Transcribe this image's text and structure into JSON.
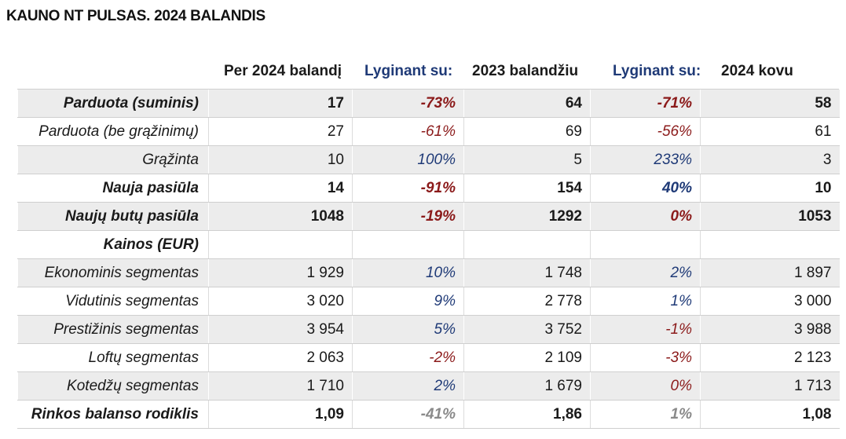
{
  "title": "KAUNO NT PULSAS. 2024 BALANDIS",
  "headers": [
    "Per 2024 balandį",
    "Lyginant su:",
    "2023 balandžiu",
    "Lyginant su:",
    "2024 kovu"
  ],
  "colors": {
    "red": "#8b1a1a",
    "blue": "#1f3a77",
    "gray": "#8a8a8a",
    "shade": "#ececec"
  },
  "rows": [
    {
      "label": "Parduota (suminis)",
      "bold": true,
      "shade": true,
      "cur": "17",
      "pct1": "-73%",
      "pct1_color": "red",
      "y2023": "64",
      "pct2": "-71%",
      "pct2_color": "red",
      "mar": "58"
    },
    {
      "label": "Parduota (be grąžinimų)",
      "bold": false,
      "shade": false,
      "cur": "27",
      "pct1": "-61%",
      "pct1_color": "red",
      "y2023": "69",
      "pct2": "-56%",
      "pct2_color": "red",
      "mar": "61"
    },
    {
      "label": "Grąžinta",
      "bold": false,
      "shade": true,
      "cur": "10",
      "pct1": "100%",
      "pct1_color": "blue",
      "y2023": "5",
      "pct2": "233%",
      "pct2_color": "blue",
      "mar": "3"
    },
    {
      "label": "Nauja pasiūla",
      "bold": true,
      "shade": false,
      "cur": "14",
      "pct1": "-91%",
      "pct1_color": "red",
      "y2023": "154",
      "pct2": "40%",
      "pct2_color": "blue",
      "mar": "10"
    },
    {
      "label": "Naujų butų pasiūla",
      "bold": true,
      "shade": true,
      "cur": "1048",
      "pct1": "-19%",
      "pct1_color": "red",
      "y2023": "1292",
      "pct2": "0%",
      "pct2_color": "red",
      "mar": "1053"
    },
    {
      "label": "Kainos (EUR)",
      "bold": true,
      "shade": false,
      "cur": "",
      "pct1": "",
      "pct1_color": "red",
      "y2023": "",
      "pct2": "",
      "pct2_color": "red",
      "mar": ""
    },
    {
      "label": "Ekonominis segmentas",
      "bold": false,
      "shade": true,
      "cur": "1 929",
      "pct1": "10%",
      "pct1_color": "blue",
      "y2023": "1 748",
      "pct2": "2%",
      "pct2_color": "blue",
      "mar": "1 897"
    },
    {
      "label": "Vidutinis segmentas",
      "bold": false,
      "shade": false,
      "cur": "3 020",
      "pct1": "9%",
      "pct1_color": "blue",
      "y2023": "2 778",
      "pct2": "1%",
      "pct2_color": "blue",
      "mar": "3 000"
    },
    {
      "label": "Prestižinis segmentas",
      "bold": false,
      "shade": true,
      "cur": "3 954",
      "pct1": "5%",
      "pct1_color": "blue",
      "y2023": "3 752",
      "pct2": "-1%",
      "pct2_color": "red",
      "mar": "3 988"
    },
    {
      "label": "Loftų segmentas",
      "bold": false,
      "shade": false,
      "cur": "2 063",
      "pct1": "-2%",
      "pct1_color": "red",
      "y2023": "2 109",
      "pct2": "-3%",
      "pct2_color": "red",
      "mar": "2 123"
    },
    {
      "label": "Kotedžų segmentas",
      "bold": false,
      "shade": true,
      "cur": "1 710",
      "pct1": "2%",
      "pct1_color": "blue",
      "y2023": "1 679",
      "pct2": "0%",
      "pct2_color": "red",
      "mar": "1 713"
    },
    {
      "label": "Rinkos balanso rodiklis",
      "bold": true,
      "shade": false,
      "cur": "1,09",
      "pct1": "-41%",
      "pct1_color": "gray",
      "y2023": "1,86",
      "pct2": "1%",
      "pct2_color": "gray",
      "mar": "1,08"
    }
  ]
}
